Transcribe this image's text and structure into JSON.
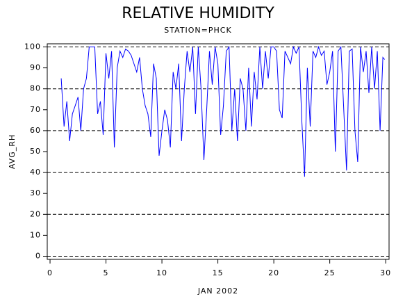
{
  "chart_data": {
    "type": "line",
    "title": "RELATIVE HUMIDITY",
    "subtitle": "STATION=PHCK",
    "x_label": "JAN 2002",
    "y_label": "AVG_RH",
    "xlim": [
      -0.25,
      30.3
    ],
    "ylim": [
      -1.5,
      101.5
    ],
    "xticks": [
      0,
      5,
      10,
      15,
      20,
      25,
      30
    ],
    "yticks": [
      0,
      10,
      20,
      30,
      40,
      50,
      60,
      70,
      80,
      90,
      100
    ],
    "ygrid": [
      0,
      20,
      40,
      60,
      80,
      100
    ],
    "grid": true,
    "series": [
      {
        "name": "AVG_RH",
        "color": "#0000ff",
        "x": [
          1.0,
          1.25,
          1.5,
          1.75,
          2.0,
          2.25,
          2.5,
          2.75,
          3.0,
          3.25,
          3.5,
          3.75,
          4.0,
          4.25,
          4.5,
          4.75,
          5.0,
          5.25,
          5.5,
          5.75,
          6.0,
          6.25,
          6.5,
          6.75,
          7.0,
          7.25,
          7.5,
          7.75,
          8.0,
          8.25,
          8.5,
          8.75,
          9.0,
          9.25,
          9.5,
          9.75,
          10.0,
          10.25,
          10.5,
          10.75,
          11.0,
          11.25,
          11.5,
          11.75,
          12.0,
          12.25,
          12.5,
          12.75,
          13.0,
          13.25,
          13.5,
          13.75,
          14.0,
          14.25,
          14.5,
          14.75,
          15.0,
          15.25,
          15.5,
          15.75,
          16.0,
          16.25,
          16.5,
          16.75,
          17.0,
          17.25,
          17.5,
          17.75,
          18.0,
          18.25,
          18.5,
          18.75,
          19.0,
          19.25,
          19.5,
          19.75,
          20.0,
          20.25,
          20.5,
          20.75,
          21.0,
          21.25,
          21.5,
          21.75,
          22.0,
          22.25,
          22.5,
          22.75,
          23.0,
          23.25,
          23.5,
          23.75,
          24.0,
          24.25,
          24.5,
          24.75,
          25.0,
          25.25,
          25.5,
          25.75,
          26.0,
          26.25,
          26.5,
          26.75,
          27.0,
          27.25,
          27.5,
          27.75,
          28.0,
          28.25,
          28.5,
          28.75,
          29.0,
          29.25,
          29.5,
          29.75,
          29.9
        ],
        "values": [
          85,
          62,
          74,
          55,
          68,
          72,
          76,
          60,
          80,
          85,
          100,
          100,
          100,
          68,
          74,
          58,
          97,
          85,
          98,
          52,
          90,
          98,
          95,
          99,
          98,
          96,
          92,
          88,
          95,
          80,
          72,
          68,
          57,
          92,
          85,
          48,
          60,
          70,
          65,
          52,
          88,
          80,
          92,
          55,
          80,
          98,
          88,
          100,
          68,
          100,
          80,
          46,
          70,
          98,
          82,
          100,
          92,
          58,
          72,
          98,
          100,
          60,
          80,
          55,
          85,
          80,
          60,
          90,
          62,
          88,
          75,
          100,
          80,
          98,
          85,
          100,
          100,
          98,
          70,
          66,
          98,
          95,
          92,
          100,
          97,
          100,
          65,
          38,
          90,
          62,
          98,
          95,
          100,
          96,
          98,
          82,
          88,
          98,
          50,
          98,
          100,
          70,
          41,
          98,
          99,
          60,
          45,
          100,
          88,
          98,
          78,
          100,
          80,
          98,
          60,
          95,
          94
        ]
      }
    ]
  }
}
